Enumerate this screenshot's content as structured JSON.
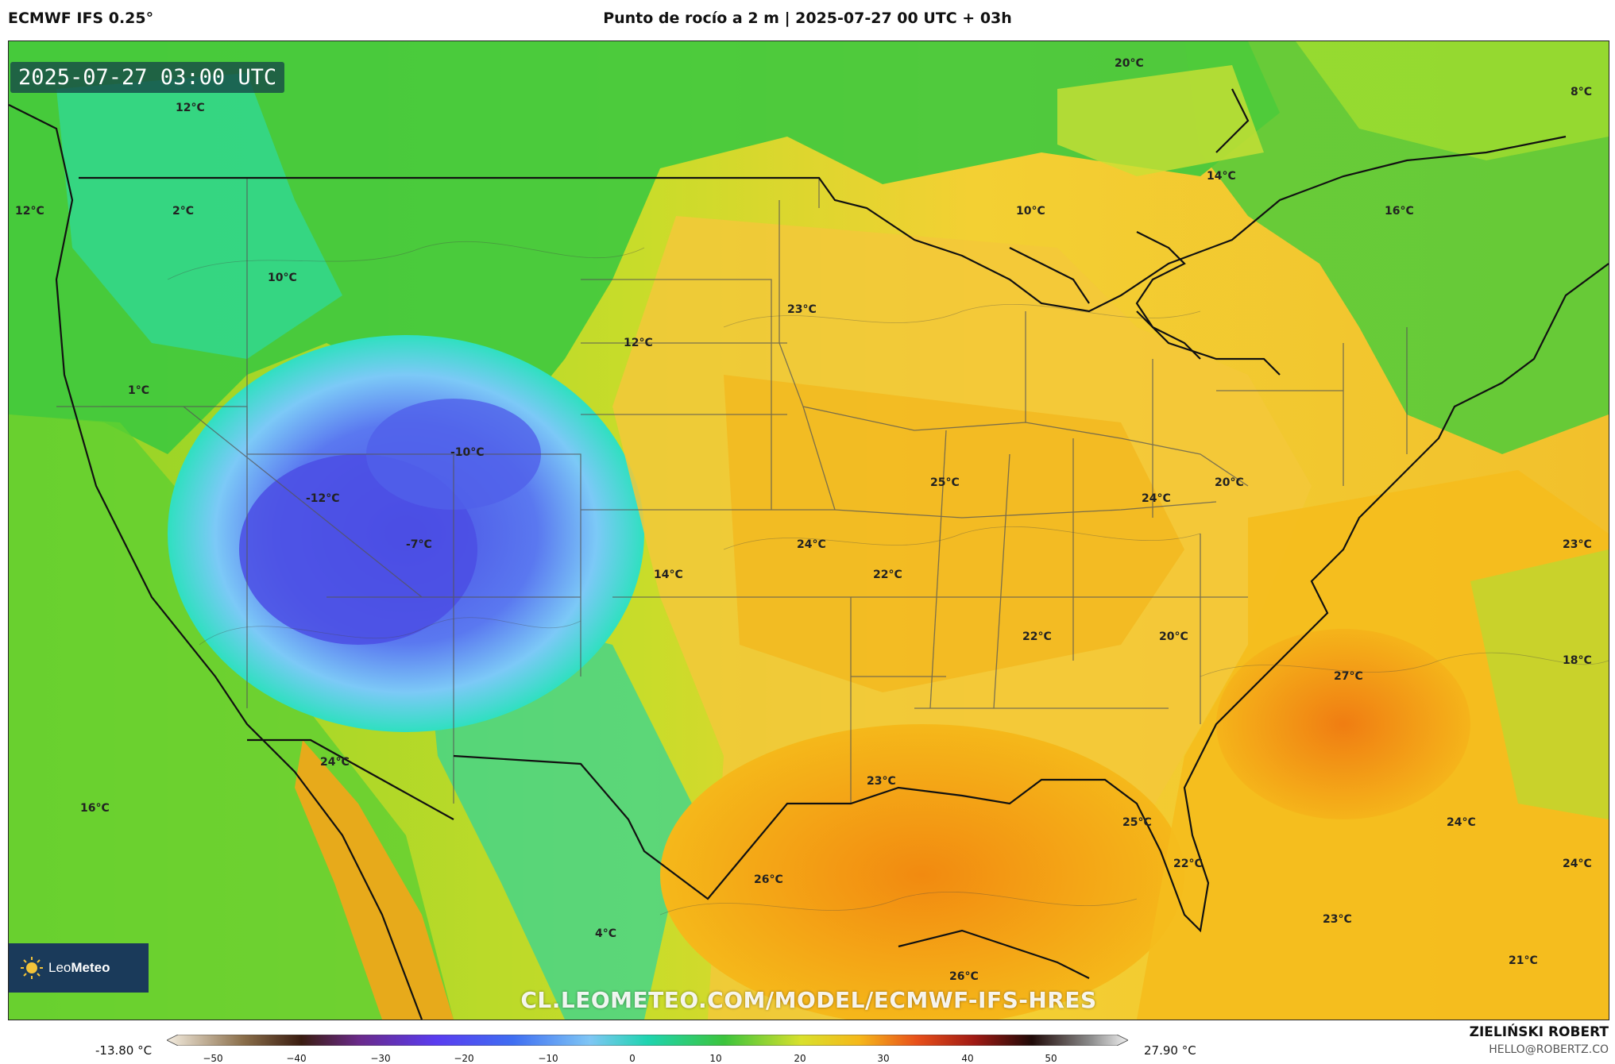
{
  "header": {
    "model": "ECMWF IFS 0.25°",
    "title": "Punto de rocío a 2 m | 2025-07-27 00 UTC + 03h"
  },
  "map": {
    "timestamp": "2025-07-27 03:00 UTC",
    "watermark": "CL.LEOMETEO.COM/MODEL/ECMWF-IFS-HRES",
    "logo_text_light": "Leo",
    "logo_text_bold": "Meteo",
    "labels": [
      {
        "id": "l1",
        "text": "20°C"
      },
      {
        "id": "l2",
        "text": "8°C"
      },
      {
        "id": "l3",
        "text": "12°C"
      },
      {
        "id": "l4",
        "text": "14°C"
      },
      {
        "id": "l5",
        "text": "10°C"
      },
      {
        "id": "l6",
        "text": "16°C"
      },
      {
        "id": "l7",
        "text": "12°C"
      },
      {
        "id": "l8",
        "text": "2°C"
      },
      {
        "id": "l9",
        "text": "10°C"
      },
      {
        "id": "l10",
        "text": "23°C"
      },
      {
        "id": "l11",
        "text": "12°C"
      },
      {
        "id": "l12",
        "text": "1°C"
      },
      {
        "id": "l13",
        "text": "-10°C"
      },
      {
        "id": "l14",
        "text": "-12°C"
      },
      {
        "id": "l15",
        "text": "25°C"
      },
      {
        "id": "l16",
        "text": "20°C"
      },
      {
        "id": "l17",
        "text": "24°C"
      },
      {
        "id": "l18",
        "text": "-7°C"
      },
      {
        "id": "l19",
        "text": "24°C"
      },
      {
        "id": "l20",
        "text": "23°C"
      },
      {
        "id": "l21",
        "text": "14°C"
      },
      {
        "id": "l22",
        "text": "22°C"
      },
      {
        "id": "l23",
        "text": "22°C"
      },
      {
        "id": "l24",
        "text": "20°C"
      },
      {
        "id": "l25",
        "text": "18°C"
      },
      {
        "id": "l26",
        "text": "27°C"
      },
      {
        "id": "l27",
        "text": "24°C"
      },
      {
        "id": "l28",
        "text": "23°C"
      },
      {
        "id": "l29",
        "text": "16°C"
      },
      {
        "id": "l30",
        "text": "25°C"
      },
      {
        "id": "l31",
        "text": "24°C"
      },
      {
        "id": "l32",
        "text": "24°C"
      },
      {
        "id": "l33",
        "text": "22°C"
      },
      {
        "id": "l34",
        "text": "26°C"
      },
      {
        "id": "l35",
        "text": "23°C"
      },
      {
        "id": "l36",
        "text": "4°C"
      },
      {
        "id": "l37",
        "text": "21°C"
      },
      {
        "id": "l38",
        "text": "26°C"
      }
    ]
  },
  "legend": {
    "min": "-13.80 °C",
    "max": "27.90 °C",
    "ticks": [
      "−50",
      "−40",
      "−30",
      "−20",
      "−10",
      "0",
      "10",
      "20",
      "30",
      "40",
      "50"
    ],
    "author": "ZIELIŃSKI ROBERT",
    "email": "HELLO@ROBERTZ.CO"
  },
  "colors": {
    "cold": "#4b54e6",
    "cool": "#1fd4a8",
    "mild": "#3cc43c",
    "warm": "#f5c21b",
    "hot": "#f59a10"
  }
}
